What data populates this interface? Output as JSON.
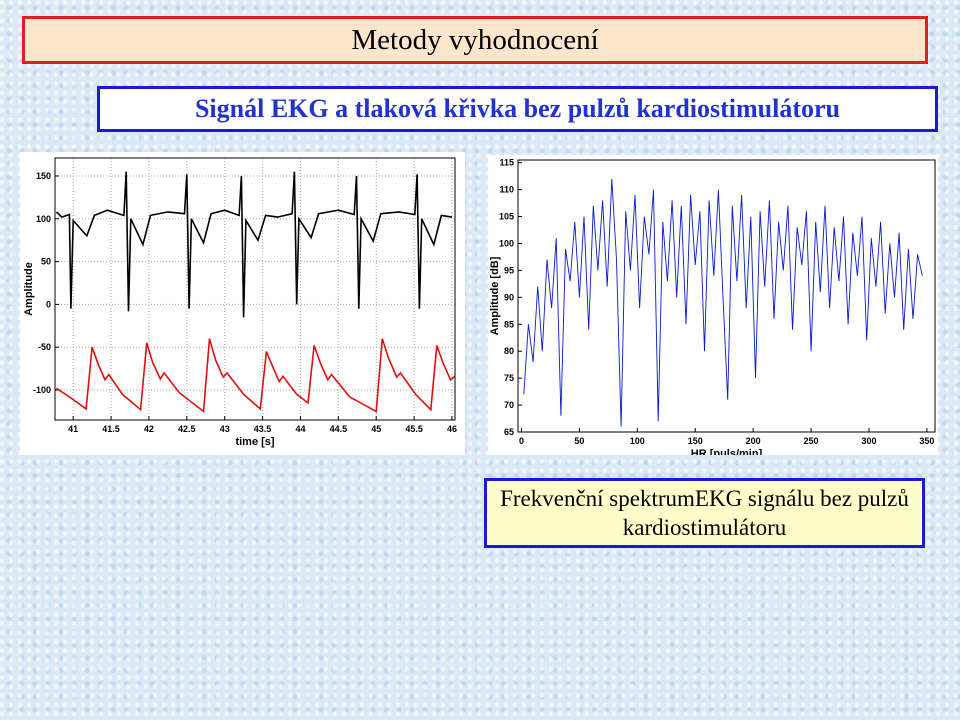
{
  "header": {
    "title": "Metody vyhodnocení",
    "subtitle": "Signál EKG a tlaková křivka bez pulzů kardiostimulátoru"
  },
  "caption": "Frekvenční spektrumEKG signálu bez pulzů kardiostimulátoru",
  "chart_data": [
    {
      "type": "line",
      "xlabel": "time [s]",
      "ylabel": "Amplitude",
      "xlim": [
        40.76,
        46.04
      ],
      "ylim": [
        -135,
        171
      ],
      "xticks": [
        41,
        41.5,
        42,
        42.5,
        43,
        43.5,
        44,
        44.5,
        45,
        45.5,
        46
      ],
      "yticks": [
        -100,
        -50,
        0,
        50,
        100,
        150
      ],
      "grid": true,
      "series": [
        {
          "color": "#000000",
          "x": [
            40.78,
            40.85,
            40.95,
            40.97,
            41.0,
            41.18,
            41.28,
            41.45,
            41.67,
            41.7,
            41.73,
            41.76,
            41.92,
            42.02,
            42.25,
            42.47,
            42.5,
            42.53,
            42.56,
            42.72,
            42.82,
            43.0,
            43.19,
            43.22,
            43.25,
            43.28,
            43.44,
            43.54,
            43.7,
            43.89,
            43.92,
            43.95,
            43.98,
            44.14,
            44.24,
            44.5,
            44.71,
            44.74,
            44.77,
            44.8,
            44.96,
            45.06,
            45.3,
            45.51,
            45.54,
            45.57,
            45.6,
            45.76,
            45.86,
            46.0
          ],
          "values": [
            108,
            102,
            105,
            -5,
            98,
            80,
            104,
            110,
            104,
            155,
            -8,
            100,
            70,
            104,
            108,
            106,
            152,
            -5,
            100,
            72,
            106,
            110,
            104,
            150,
            -15,
            98,
            75,
            104,
            102,
            106,
            155,
            0,
            100,
            78,
            106,
            110,
            105,
            150,
            -5,
            100,
            74,
            106,
            108,
            105,
            152,
            -5,
            100,
            70,
            104,
            102
          ]
        },
        {
          "color": "#dd1111",
          "x": [
            40.78,
            40.95,
            41.17,
            41.25,
            41.33,
            41.42,
            41.47,
            41.65,
            41.89,
            41.97,
            42.05,
            42.15,
            42.2,
            42.4,
            42.72,
            42.8,
            42.88,
            42.98,
            43.03,
            43.25,
            43.47,
            43.55,
            43.63,
            43.72,
            43.77,
            43.95,
            44.1,
            44.18,
            44.26,
            44.36,
            44.41,
            44.65,
            45.0,
            45.08,
            45.16,
            45.27,
            45.32,
            45.52,
            45.72,
            45.8,
            45.88,
            45.98,
            46.04
          ],
          "values": [
            -98,
            -108,
            -122,
            -50,
            -70,
            -88,
            -82,
            -105,
            -123,
            -45,
            -68,
            -87,
            -80,
            -103,
            -125,
            -40,
            -65,
            -85,
            -80,
            -105,
            -122,
            -55,
            -72,
            -90,
            -84,
            -105,
            -115,
            -48,
            -68,
            -88,
            -82,
            -108,
            -125,
            -40,
            -62,
            -85,
            -80,
            -105,
            -123,
            -48,
            -68,
            -88,
            -84
          ]
        }
      ]
    },
    {
      "type": "line",
      "xlabel": "HR [puls/min]",
      "ylabel": "Amplitude [dB]",
      "xlim": [
        -3,
        357
      ],
      "ylim": [
        65,
        115.5
      ],
      "xticks": [
        0,
        50,
        100,
        150,
        200,
        250,
        300,
        350
      ],
      "yticks": [
        65,
        70,
        75,
        80,
        85,
        90,
        95,
        100,
        105,
        110,
        115
      ],
      "grid": false,
      "series": [
        {
          "color": "#0a1acc",
          "x": [
            2,
            6,
            10,
            14,
            18,
            22,
            26,
            30,
            34,
            38,
            42,
            46,
            50,
            54,
            58,
            62,
            66,
            70,
            74,
            78,
            82,
            86,
            90,
            94,
            98,
            102,
            106,
            110,
            114,
            118,
            122,
            126,
            130,
            134,
            138,
            142,
            146,
            150,
            154,
            158,
            162,
            166,
            170,
            174,
            178,
            182,
            186,
            190,
            194,
            198,
            202,
            206,
            210,
            214,
            218,
            222,
            226,
            230,
            234,
            238,
            242,
            246,
            250,
            254,
            258,
            262,
            266,
            270,
            274,
            278,
            282,
            286,
            290,
            294,
            298,
            302,
            306,
            310,
            314,
            318,
            322,
            326,
            330,
            334,
            338,
            342,
            346
          ],
          "values": [
            72,
            85,
            78,
            92,
            80,
            97,
            88,
            101,
            68,
            99,
            93,
            104,
            90,
            105,
            84,
            107,
            95,
            108,
            92,
            112,
            97,
            66,
            106,
            95,
            109,
            88,
            105,
            98,
            110,
            67,
            104,
            93,
            108,
            90,
            107,
            85,
            109,
            96,
            106,
            80,
            108,
            94,
            110,
            90,
            71,
            107,
            93,
            109,
            88,
            105,
            75,
            106,
            92,
            108,
            86,
            104,
            95,
            107,
            84,
            103,
            96,
            106,
            80,
            104,
            91,
            107,
            88,
            103,
            93,
            105,
            85,
            102,
            94,
            105,
            82,
            101,
            92,
            104,
            87,
            100,
            90,
            102,
            84,
            99,
            86,
            98,
            94
          ]
        }
      ]
    }
  ]
}
